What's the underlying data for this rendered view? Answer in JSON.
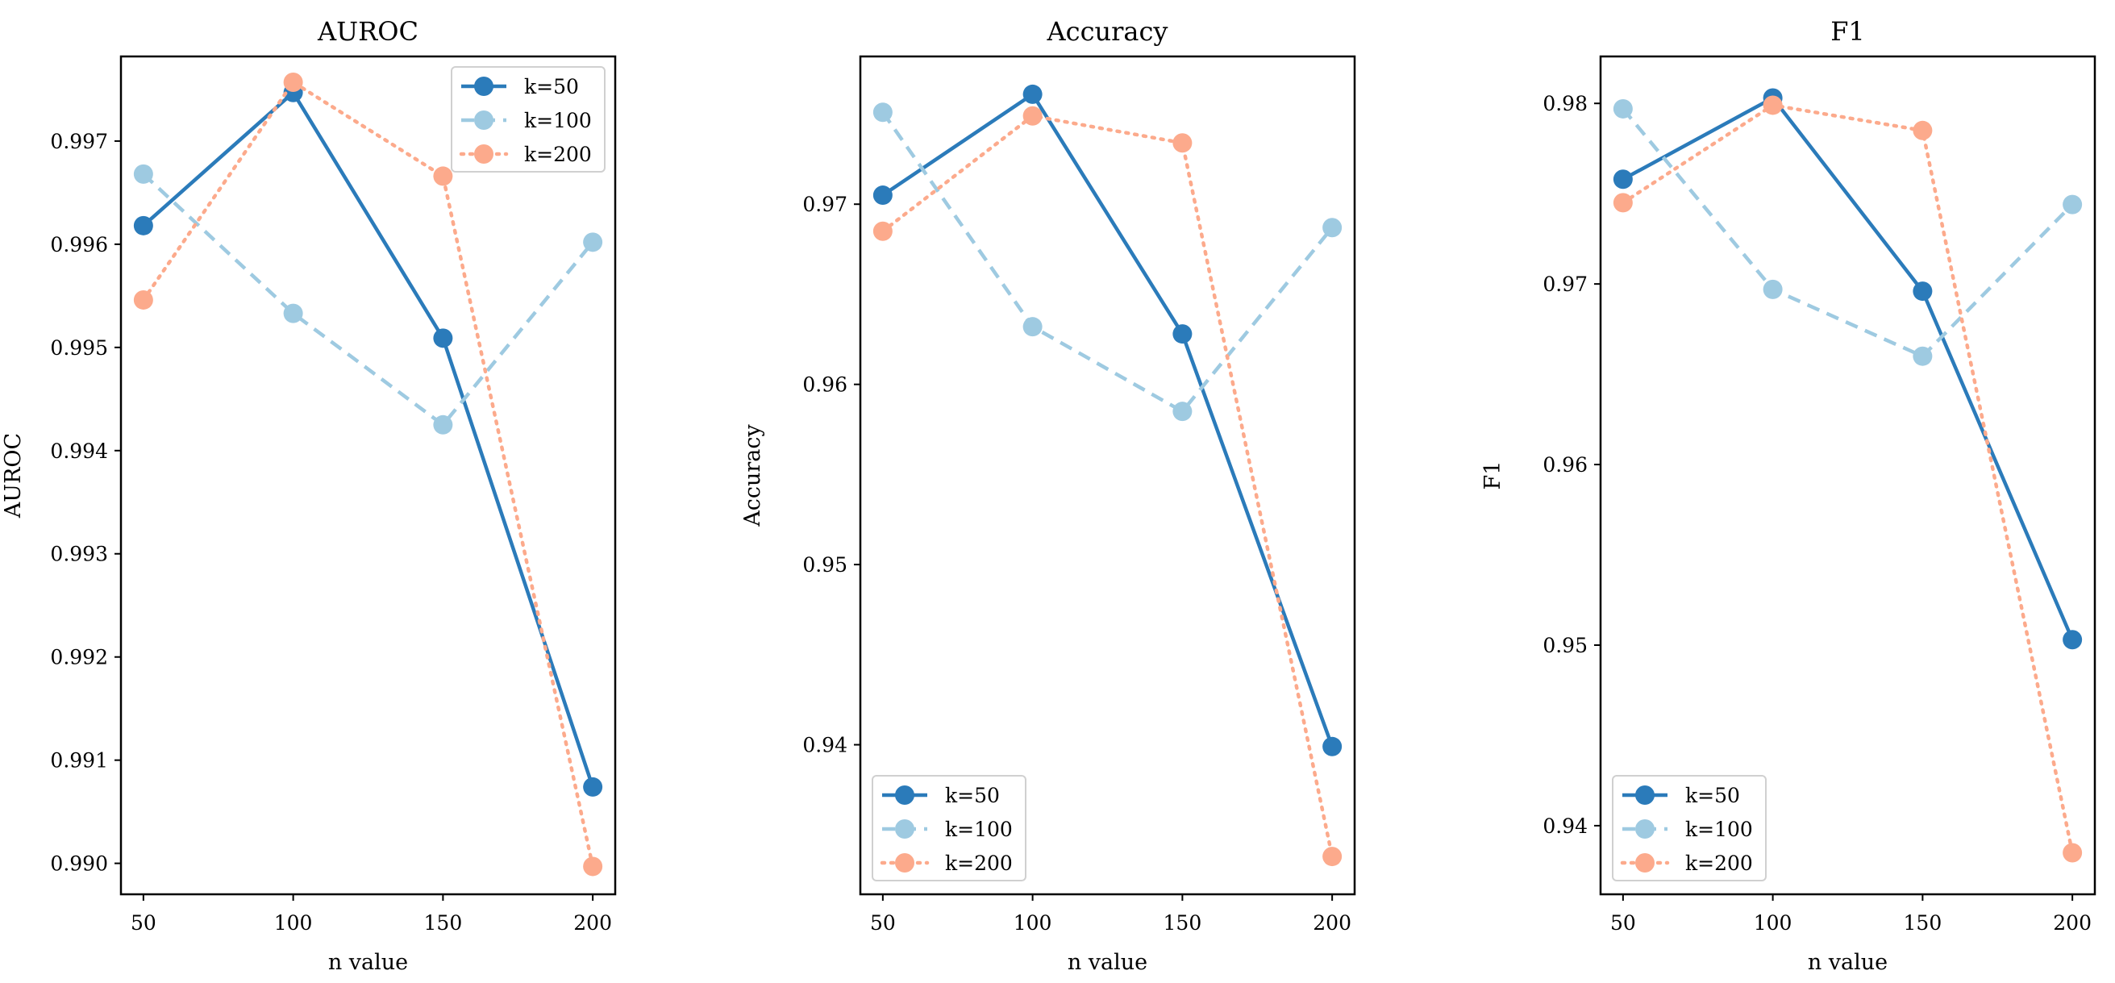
{
  "colors": {
    "k50": "#2b7bba",
    "k100": "#9ecae1",
    "k200": "#fcaa8c",
    "axis": "#000000",
    "legend_border": "#d0d0d0"
  },
  "chart_data": [
    {
      "type": "line",
      "title": "AUROC",
      "xlabel": "n value",
      "ylabel": "AUROC",
      "x": [
        50,
        100,
        150,
        200
      ],
      "xticks": [
        "50",
        "100",
        "150",
        "200"
      ],
      "xlim": [
        42.5,
        207.5
      ],
      "ylim": [
        0.9897,
        0.99782
      ],
      "yticks": [
        "0.990",
        "0.991",
        "0.992",
        "0.993",
        "0.994",
        "0.995",
        "0.996",
        "0.997"
      ],
      "ytick_values": [
        0.99,
        0.991,
        0.992,
        0.993,
        0.994,
        0.995,
        0.996,
        0.997
      ],
      "legend": "top-right",
      "series": [
        {
          "name": "k=50",
          "style": "solid",
          "values": [
            0.99618,
            0.99747,
            0.99509,
            0.99074
          ]
        },
        {
          "name": "k=100",
          "style": "dashed",
          "values": [
            0.99668,
            0.99533,
            0.99425,
            0.99602
          ]
        },
        {
          "name": "k=200",
          "style": "dotted",
          "values": [
            0.99546,
            0.99757,
            0.99666,
            0.98997
          ]
        }
      ]
    },
    {
      "type": "line",
      "title": "Accuracy",
      "xlabel": "n value",
      "ylabel": "Accuracy",
      "x": [
        50,
        100,
        150,
        200
      ],
      "xticks": [
        "50",
        "100",
        "150",
        "200"
      ],
      "xlim": [
        42.5,
        207.5
      ],
      "ylim": [
        0.9317,
        0.9782
      ],
      "yticks": [
        "0.94",
        "0.95",
        "0.96",
        "0.97"
      ],
      "ytick_values": [
        0.94,
        0.95,
        0.96,
        0.97
      ],
      "legend": "bottom-left",
      "series": [
        {
          "name": "k=50",
          "style": "solid",
          "values": [
            0.9705,
            0.9761,
            0.9628,
            0.9399
          ]
        },
        {
          "name": "k=100",
          "style": "dashed",
          "values": [
            0.9751,
            0.9632,
            0.9585,
            0.9687
          ]
        },
        {
          "name": "k=200",
          "style": "dotted",
          "values": [
            0.9685,
            0.9749,
            0.9734,
            0.9338
          ]
        }
      ]
    },
    {
      "type": "line",
      "title": "F1",
      "xlabel": "n value",
      "ylabel": "F1",
      "x": [
        50,
        100,
        150,
        200
      ],
      "xticks": [
        "50",
        "100",
        "150",
        "200"
      ],
      "xlim": [
        42.5,
        207.5
      ],
      "ylim": [
        0.9362,
        0.9826
      ],
      "yticks": [
        "0.94",
        "0.95",
        "0.96",
        "0.97",
        "0.98"
      ],
      "ytick_values": [
        0.94,
        0.95,
        0.96,
        0.97,
        0.98
      ],
      "legend": "bottom-left",
      "series": [
        {
          "name": "k=50",
          "style": "solid",
          "values": [
            0.9758,
            0.9803,
            0.9696,
            0.9503
          ]
        },
        {
          "name": "k=100",
          "style": "dashed",
          "values": [
            0.9797,
            0.9697,
            0.966,
            0.9744
          ]
        },
        {
          "name": "k=200",
          "style": "dotted",
          "values": [
            0.9745,
            0.9799,
            0.9785,
            0.9385
          ]
        }
      ]
    }
  ]
}
